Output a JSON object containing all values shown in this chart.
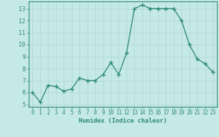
{
  "x": [
    0,
    1,
    2,
    3,
    4,
    5,
    6,
    7,
    8,
    9,
    10,
    11,
    12,
    13,
    14,
    15,
    16,
    17,
    18,
    19,
    20,
    21,
    22,
    23
  ],
  "y": [
    6.0,
    5.2,
    6.6,
    6.5,
    6.1,
    6.3,
    7.2,
    7.0,
    7.0,
    7.5,
    8.5,
    7.5,
    9.3,
    13.0,
    13.3,
    13.0,
    13.0,
    13.0,
    13.0,
    12.0,
    10.0,
    8.8,
    8.4,
    7.7
  ],
  "title": "",
  "xlabel": "Humidex (Indice chaleur)",
  "ylabel": "",
  "xlim": [
    -0.5,
    23.5
  ],
  "ylim": [
    4.8,
    13.6
  ],
  "yticks": [
    5,
    6,
    7,
    8,
    9,
    10,
    11,
    12,
    13
  ],
  "xticks": [
    0,
    1,
    2,
    3,
    4,
    5,
    6,
    7,
    8,
    9,
    10,
    11,
    12,
    13,
    14,
    15,
    16,
    17,
    18,
    19,
    20,
    21,
    22,
    23
  ],
  "line_color": "#2e8b72",
  "marker": "+",
  "bg_color": "#c5e8e8",
  "grid_color": "#aed4d4",
  "axis_color": "#2e8b72",
  "tick_color": "#2e8b72",
  "label_color": "#2e8b72",
  "font_family": "monospace"
}
